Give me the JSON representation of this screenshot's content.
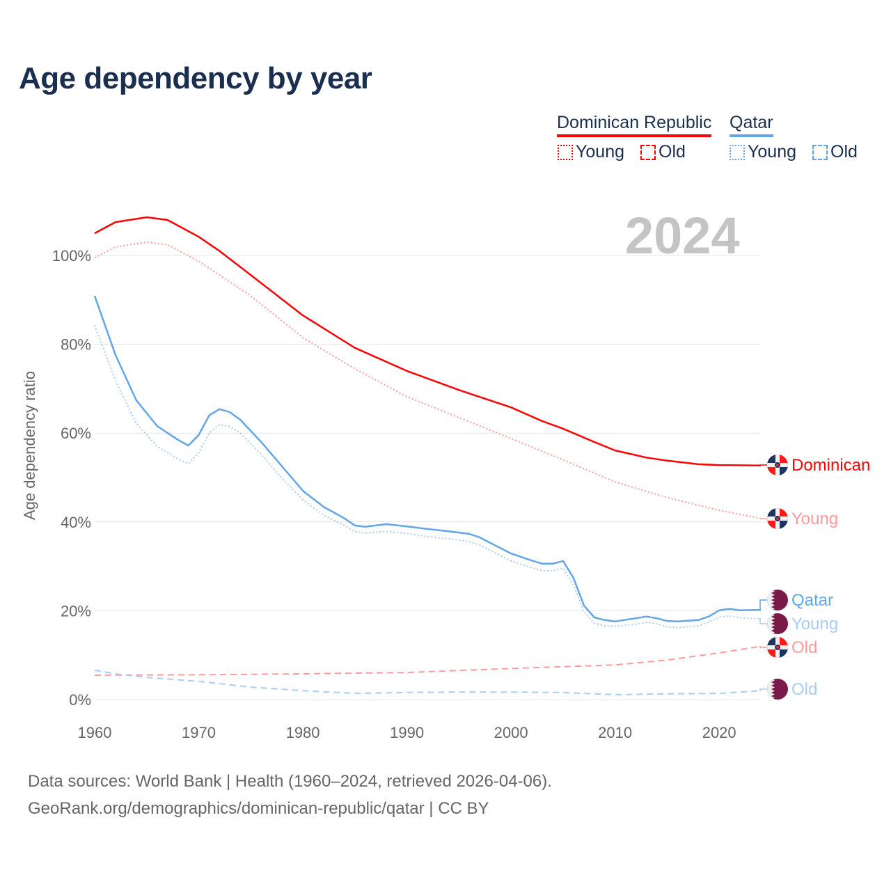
{
  "title": "Age dependency by year",
  "current_year": "2024",
  "legend": {
    "countries": [
      {
        "name": "Dominican Republic",
        "color": "#ff0000"
      },
      {
        "name": "Qatar",
        "color": "#62a6e8"
      }
    ],
    "items": [
      {
        "label": "Young",
        "style": "dotted",
        "color": "#ff0000"
      },
      {
        "label": "Old",
        "style": "dashed",
        "color": "#ff0000"
      },
      {
        "label": "Young",
        "style": "dotted",
        "color": "#62a6e8"
      },
      {
        "label": "Old",
        "style": "dashed",
        "color": "#62a6e8"
      }
    ]
  },
  "footer": {
    "line1": "Data sources: World Bank | Health (1960–2024, retrieved 2026-04-06).",
    "line2": "GeoRank.org/demographics/dominican-republic/qatar | CC BY"
  },
  "chart_data": {
    "type": "line",
    "title": "Age dependency by year",
    "xlabel": "",
    "ylabel": "Age dependency ratio",
    "xlim": [
      1960,
      2024
    ],
    "ylim": [
      0,
      110
    ],
    "x_ticks": [
      "1960",
      "1970",
      "1980",
      "1990",
      "2000",
      "2010",
      "2020"
    ],
    "x_tick_values": [
      1960,
      1970,
      1980,
      1990,
      2000,
      2010,
      2020
    ],
    "y_ticks": [
      "0%",
      "20%",
      "40%",
      "60%",
      "80%",
      "100%"
    ],
    "y_tick_values": [
      0,
      20,
      40,
      60,
      80,
      100
    ],
    "grid": "horizontal",
    "series": [
      {
        "name": "Dominican Republic",
        "end_label": "Dominican",
        "flag": "dominican-republic",
        "color": "#ff0000",
        "style": "solid",
        "points": [
          [
            1960,
            105.0
          ],
          [
            1962,
            107.5
          ],
          [
            1965,
            108.6
          ],
          [
            1967,
            108.0
          ],
          [
            1970,
            104.2
          ],
          [
            1972,
            101.0
          ],
          [
            1975,
            95.6
          ],
          [
            1980,
            86.5
          ],
          [
            1985,
            79.2
          ],
          [
            1990,
            74.0
          ],
          [
            1995,
            69.7
          ],
          [
            2000,
            65.8
          ],
          [
            2003,
            62.7
          ],
          [
            2005,
            61.0
          ],
          [
            2008,
            58.0
          ],
          [
            2010,
            56.1
          ],
          [
            2013,
            54.5
          ],
          [
            2015,
            53.8
          ],
          [
            2018,
            53.0
          ],
          [
            2020,
            52.8
          ],
          [
            2024,
            52.7
          ]
        ]
      },
      {
        "name": "Dominican Republic Young",
        "end_label": "Young",
        "flag": "dominican-republic",
        "color": "#ff9a9a",
        "style": "dotted",
        "points": [
          [
            1960,
            99.5
          ],
          [
            1962,
            101.9
          ],
          [
            1965,
            103.0
          ],
          [
            1967,
            102.4
          ],
          [
            1970,
            98.7
          ],
          [
            1975,
            90.9
          ],
          [
            1980,
            81.5
          ],
          [
            1985,
            74.5
          ],
          [
            1990,
            68.2
          ],
          [
            1995,
            63.5
          ],
          [
            2000,
            58.8
          ],
          [
            2005,
            54.0
          ],
          [
            2010,
            49.0
          ],
          [
            2015,
            45.5
          ],
          [
            2020,
            42.6
          ],
          [
            2024,
            40.8
          ]
        ]
      },
      {
        "name": "Qatar",
        "end_label": "Qatar",
        "flag": "qatar",
        "color": "#62a6e8",
        "style": "solid",
        "points": [
          [
            1960,
            90.9
          ],
          [
            1962,
            77.6
          ],
          [
            1964,
            67.4
          ],
          [
            1966,
            61.6
          ],
          [
            1968,
            58.5
          ],
          [
            1969,
            57.2
          ],
          [
            1970,
            59.6
          ],
          [
            1971,
            64.0
          ],
          [
            1972,
            65.4
          ],
          [
            1973,
            64.7
          ],
          [
            1974,
            63.0
          ],
          [
            1976,
            58.0
          ],
          [
            1978,
            52.5
          ],
          [
            1980,
            47.0
          ],
          [
            1982,
            43.4
          ],
          [
            1984,
            40.8
          ],
          [
            1985,
            39.2
          ],
          [
            1986,
            38.9
          ],
          [
            1988,
            39.5
          ],
          [
            1990,
            39.0
          ],
          [
            1992,
            38.4
          ],
          [
            1994,
            37.9
          ],
          [
            1996,
            37.3
          ],
          [
            1997,
            36.5
          ],
          [
            1998,
            35.3
          ],
          [
            2000,
            32.9
          ],
          [
            2002,
            31.3
          ],
          [
            2003,
            30.6
          ],
          [
            2004,
            30.6
          ],
          [
            2005,
            31.2
          ],
          [
            2006,
            27.4
          ],
          [
            2007,
            21.2
          ],
          [
            2008,
            18.5
          ],
          [
            2009,
            17.9
          ],
          [
            2010,
            17.6
          ],
          [
            2012,
            18.3
          ],
          [
            2013,
            18.7
          ],
          [
            2014,
            18.3
          ],
          [
            2015,
            17.7
          ],
          [
            2016,
            17.6
          ],
          [
            2018,
            17.9
          ],
          [
            2019,
            18.7
          ],
          [
            2020,
            20.1
          ],
          [
            2021,
            20.4
          ],
          [
            2022,
            20.1
          ],
          [
            2024,
            20.2
          ]
        ]
      },
      {
        "name": "Qatar Young",
        "end_label": "Young",
        "flag": "qatar",
        "color": "#a9cdf2",
        "style": "dotted",
        "points": [
          [
            1960,
            84.3
          ],
          [
            1962,
            71.8
          ],
          [
            1964,
            62.2
          ],
          [
            1966,
            57.0
          ],
          [
            1968,
            54.2
          ],
          [
            1969,
            53.1
          ],
          [
            1970,
            55.6
          ],
          [
            1971,
            60.0
          ],
          [
            1972,
            61.9
          ],
          [
            1973,
            61.5
          ],
          [
            1974,
            60.0
          ],
          [
            1976,
            55.2
          ],
          [
            1978,
            49.8
          ],
          [
            1980,
            45.0
          ],
          [
            1982,
            41.5
          ],
          [
            1984,
            39.2
          ],
          [
            1985,
            37.8
          ],
          [
            1986,
            37.5
          ],
          [
            1988,
            37.9
          ],
          [
            1990,
            37.4
          ],
          [
            1992,
            36.7
          ],
          [
            1994,
            36.2
          ],
          [
            1996,
            35.6
          ],
          [
            1997,
            34.8
          ],
          [
            1998,
            33.6
          ],
          [
            2000,
            31.2
          ],
          [
            2002,
            29.7
          ],
          [
            2003,
            29.0
          ],
          [
            2004,
            29.0
          ],
          [
            2005,
            29.6
          ],
          [
            2006,
            25.8
          ],
          [
            2007,
            19.8
          ],
          [
            2008,
            17.2
          ],
          [
            2009,
            16.6
          ],
          [
            2010,
            16.5
          ],
          [
            2012,
            17.0
          ],
          [
            2013,
            17.4
          ],
          [
            2014,
            17.1
          ],
          [
            2015,
            16.4
          ],
          [
            2016,
            16.2
          ],
          [
            2018,
            16.6
          ],
          [
            2019,
            17.5
          ],
          [
            2020,
            18.6
          ],
          [
            2021,
            18.8
          ],
          [
            2022,
            18.4
          ],
          [
            2024,
            18.2
          ]
        ]
      },
      {
        "name": "Dominican Republic Old",
        "end_label": "Old",
        "flag": "dominican-republic",
        "color": "#ff9a9a",
        "style": "dashed",
        "points": [
          [
            1960,
            5.5
          ],
          [
            1970,
            5.6
          ],
          [
            1980,
            5.8
          ],
          [
            1990,
            6.1
          ],
          [
            2000,
            7.0
          ],
          [
            2010,
            7.8
          ],
          [
            2015,
            8.9
          ],
          [
            2020,
            10.5
          ],
          [
            2024,
            12.0
          ]
        ]
      },
      {
        "name": "Qatar Old",
        "end_label": "Old",
        "flag": "qatar",
        "color": "#a9cdf2",
        "style": "dashed",
        "points": [
          [
            1960,
            6.6
          ],
          [
            1962,
            5.8
          ],
          [
            1965,
            5.0
          ],
          [
            1970,
            4.1
          ],
          [
            1975,
            2.8
          ],
          [
            1980,
            2.0
          ],
          [
            1985,
            1.4
          ],
          [
            1990,
            1.6
          ],
          [
            1995,
            1.7
          ],
          [
            2000,
            1.7
          ],
          [
            2005,
            1.6
          ],
          [
            2010,
            1.1
          ],
          [
            2015,
            1.3
          ],
          [
            2020,
            1.4
          ],
          [
            2024,
            2.0
          ]
        ]
      }
    ]
  }
}
